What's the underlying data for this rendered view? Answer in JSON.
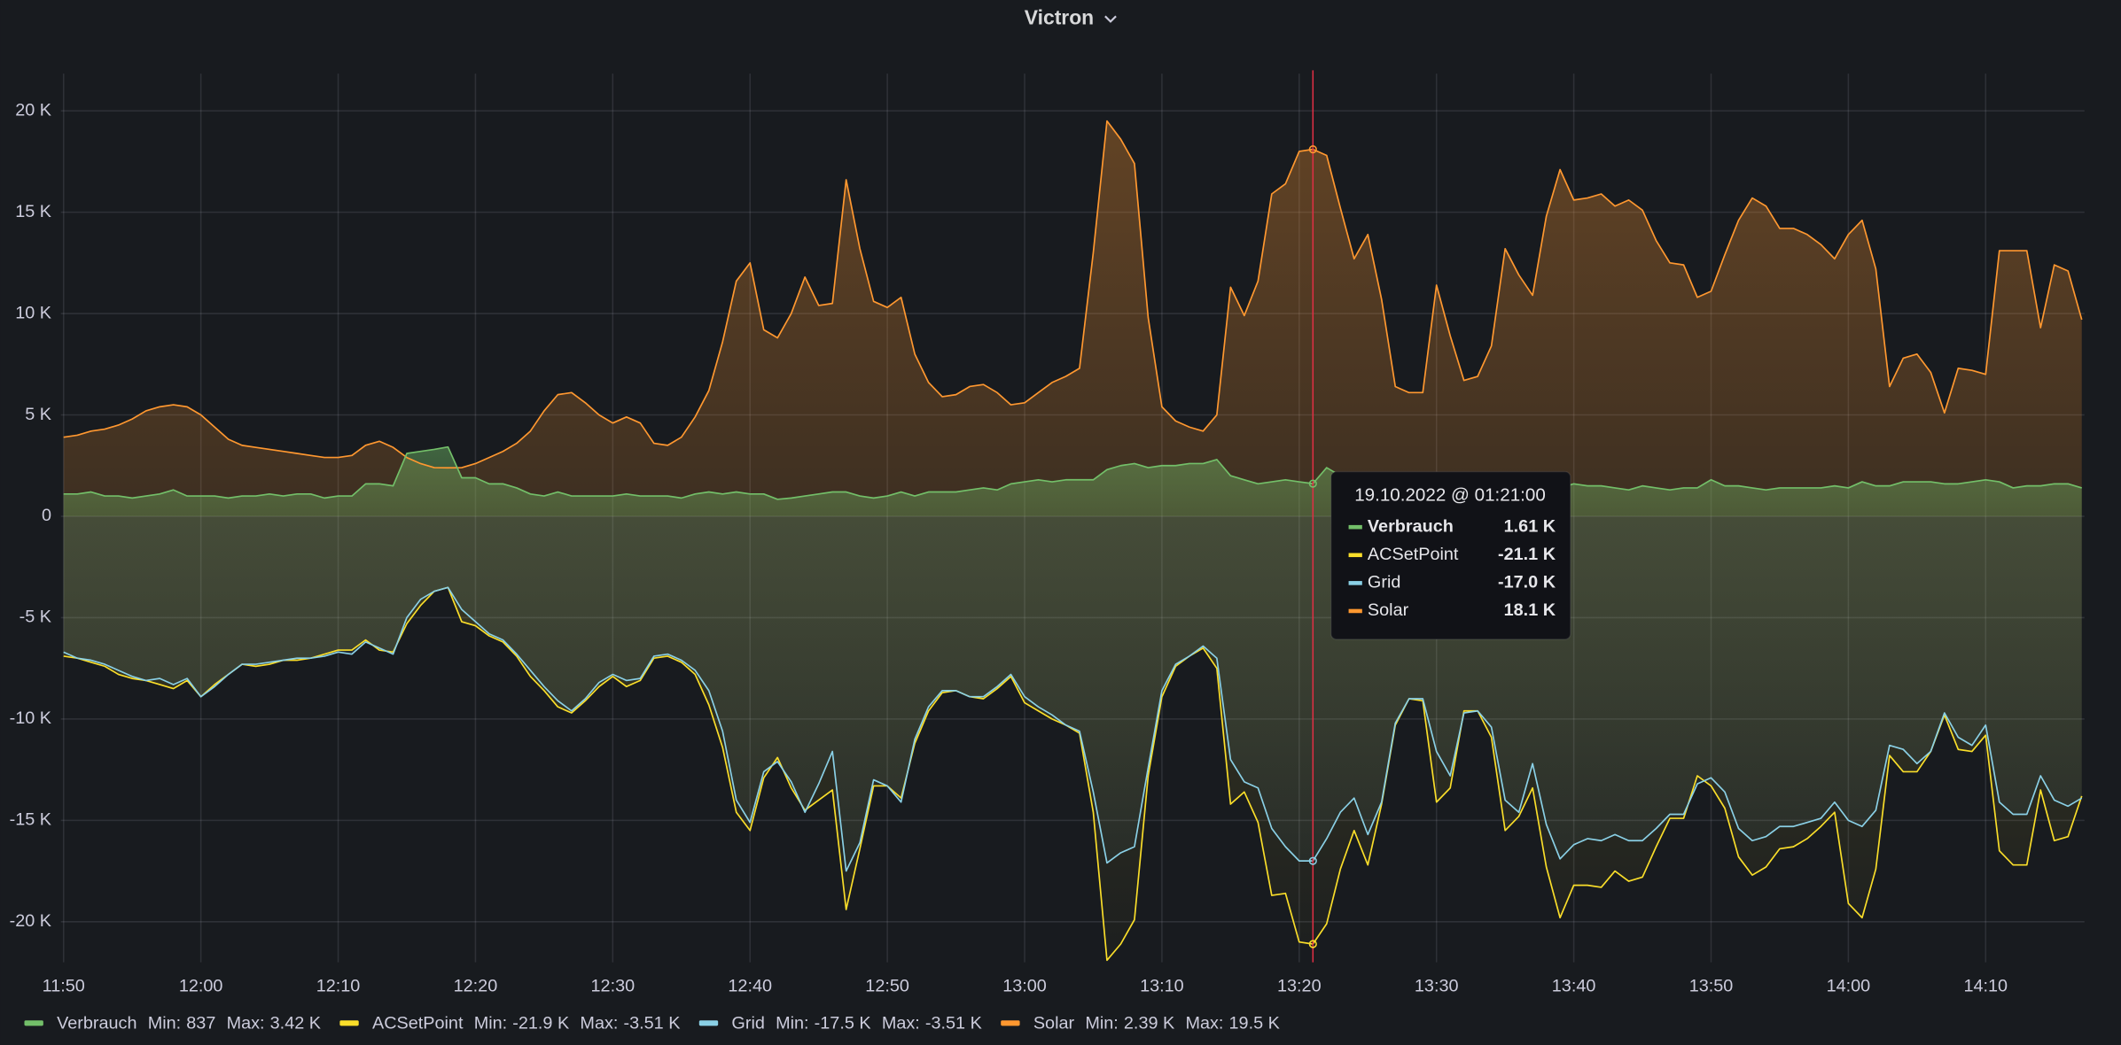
{
  "chart_data": {
    "type": "line",
    "title": "Victron",
    "x": [
      "11:50",
      "11:51",
      "11:52",
      "11:53",
      "11:54",
      "11:55",
      "11:56",
      "11:57",
      "11:58",
      "11:59",
      "12:00",
      "12:01",
      "12:02",
      "12:03",
      "12:04",
      "12:05",
      "12:06",
      "12:07",
      "12:08",
      "12:09",
      "12:10",
      "12:11",
      "12:12",
      "12:13",
      "12:14",
      "12:15",
      "12:16",
      "12:17",
      "12:18",
      "12:19",
      "12:20",
      "12:21",
      "12:22",
      "12:23",
      "12:24",
      "12:25",
      "12:26",
      "12:27",
      "12:28",
      "12:29",
      "12:30",
      "12:31",
      "12:32",
      "12:33",
      "12:34",
      "12:35",
      "12:36",
      "12:37",
      "12:38",
      "12:39",
      "12:40",
      "12:41",
      "12:42",
      "12:43",
      "12:44",
      "12:45",
      "12:46",
      "12:47",
      "12:48",
      "12:49",
      "12:50",
      "12:51",
      "12:52",
      "12:53",
      "12:54",
      "12:55",
      "12:56",
      "12:57",
      "12:58",
      "12:59",
      "13:00",
      "13:01",
      "13:02",
      "13:03",
      "13:04",
      "13:05",
      "13:06",
      "13:07",
      "13:08",
      "13:09",
      "13:10",
      "13:11",
      "13:12",
      "13:13",
      "13:14",
      "13:15",
      "13:16",
      "13:17",
      "13:18",
      "13:19",
      "13:20",
      "13:21",
      "13:22",
      "13:23",
      "13:24",
      "13:25",
      "13:26",
      "13:27",
      "13:28",
      "13:29",
      "13:30",
      "13:31",
      "13:32",
      "13:33",
      "13:34",
      "13:35",
      "13:36",
      "13:37",
      "13:38",
      "13:39",
      "13:40",
      "13:41",
      "13:42",
      "13:43",
      "13:44",
      "13:45",
      "13:46",
      "13:47",
      "13:48",
      "13:49",
      "13:50",
      "13:51",
      "13:52",
      "13:53",
      "13:54",
      "13:55",
      "13:56",
      "13:57",
      "13:58",
      "13:59",
      "14:00",
      "14:01",
      "14:02",
      "14:03",
      "14:04",
      "14:05",
      "14:06",
      "14:07",
      "14:08",
      "14:09",
      "14:10",
      "14:11",
      "14:12",
      "14:13",
      "14:14",
      "14:15",
      "14:16",
      "14:17"
    ],
    "xlim": [
      "11:50",
      "14:17"
    ],
    "xticks": [
      "11:50",
      "12:00",
      "12:10",
      "12:20",
      "12:30",
      "12:40",
      "12:50",
      "13:00",
      "13:10",
      "13:20",
      "13:30",
      "13:40",
      "13:50",
      "14:00",
      "14:10"
    ],
    "ylim": [
      -22000,
      21500
    ],
    "yticks": [
      {
        "value": -20000,
        "label": "-20 K"
      },
      {
        "value": -15000,
        "label": "-15 K"
      },
      {
        "value": -10000,
        "label": "-10 K"
      },
      {
        "value": -5000,
        "label": "-5 K"
      },
      0,
      {
        "value": 5000,
        "label": "5 K"
      },
      {
        "value": 10000,
        "label": "10 K"
      },
      {
        "value": 15000,
        "label": "15 K"
      },
      {
        "value": 20000,
        "label": "20 K"
      }
    ],
    "grid": true,
    "legend": "bottom-left",
    "legend_min": "Min:",
    "legend_max": "Max:",
    "series": [
      {
        "name": "Verbrauch",
        "color": "#73bf69",
        "min": 837,
        "max": 3420,
        "min_label": "837",
        "max_label": "3.42 K",
        "values": [
          1100,
          1100,
          1200,
          1000,
          1000,
          900,
          1000,
          1100,
          1300,
          1000,
          1000,
          1000,
          900,
          1000,
          1000,
          1100,
          1000,
          1100,
          1100,
          900,
          1000,
          1000,
          1600,
          1600,
          1500,
          3100,
          3200,
          3300,
          3420,
          1900,
          1900,
          1600,
          1600,
          1400,
          1100,
          1000,
          1200,
          1000,
          1000,
          1000,
          1000,
          1100,
          1000,
          1000,
          1000,
          900,
          1100,
          1200,
          1100,
          1200,
          1100,
          1100,
          837,
          900,
          1000,
          1100,
          1200,
          1200,
          1000,
          900,
          1000,
          1200,
          1000,
          1200,
          1200,
          1200,
          1300,
          1400,
          1300,
          1600,
          1700,
          1800,
          1700,
          1800,
          1800,
          1800,
          2300,
          2500,
          2600,
          2400,
          2500,
          2500,
          2600,
          2600,
          2800,
          2000,
          1800,
          1600,
          1700,
          1800,
          1700,
          1610,
          2400,
          2000,
          1700,
          1600,
          1500,
          1500,
          1500,
          1400,
          1500,
          1400,
          1400,
          1400,
          1500,
          1400,
          1400,
          1400,
          1300,
          1400,
          1600,
          1500,
          1500,
          1400,
          1300,
          1500,
          1400,
          1300,
          1400,
          1400,
          1800,
          1500,
          1500,
          1400,
          1300,
          1400,
          1400,
          1400,
          1400,
          1500,
          1400,
          1700,
          1500,
          1500,
          1700,
          1700,
          1700,
          1600,
          1600,
          1700,
          1800,
          1700,
          1400,
          1500,
          1500,
          1600,
          1600,
          1400
        ]
      },
      {
        "name": "ACSetPoint",
        "color": "#fade2a",
        "min": -21900,
        "max": -3510,
        "min_label": "-21.9 K",
        "max_label": "-3.51 K",
        "values": [
          -6900,
          -7000,
          -7200,
          -7400,
          -7800,
          -8000,
          -8100,
          -8300,
          -8500,
          -8100,
          -8900,
          -8300,
          -7800,
          -7300,
          -7400,
          -7300,
          -7100,
          -7100,
          -7000,
          -6800,
          -6600,
          -6600,
          -6100,
          -6600,
          -6700,
          -5300,
          -4400,
          -3700,
          -3510,
          -5200,
          -5400,
          -5900,
          -6200,
          -6900,
          -7900,
          -8600,
          -9400,
          -9700,
          -9100,
          -8400,
          -7900,
          -8400,
          -8100,
          -7000,
          -6900,
          -7200,
          -7800,
          -9300,
          -11400,
          -14600,
          -15500,
          -12900,
          -11900,
          -13400,
          -14500,
          -14000,
          -13500,
          -19400,
          -16400,
          -13300,
          -13300,
          -13900,
          -11200,
          -9600,
          -8700,
          -8600,
          -8900,
          -9000,
          -8500,
          -7900,
          -9200,
          -9600,
          -10000,
          -10300,
          -10700,
          -14600,
          -21900,
          -21100,
          -19900,
          -12800,
          -8900,
          -7400,
          -6900,
          -6500,
          -7500,
          -14200,
          -13600,
          -15100,
          -18700,
          -18600,
          -21000,
          -21100,
          -20100,
          -17400,
          -15500,
          -17200,
          -14200,
          -10300,
          -9000,
          -9100,
          -14100,
          -13400,
          -9600,
          -9600,
          -10900,
          -15500,
          -14800,
          -13400,
          -17300,
          -19800,
          -18200,
          -18200,
          -18300,
          -17500,
          -18000,
          -17800,
          -16300,
          -14900,
          -14900,
          -12800,
          -13300,
          -14400,
          -16800,
          -17700,
          -17300,
          -16400,
          -16300,
          -15900,
          -15300,
          -14600,
          -19100,
          -19800,
          -17400,
          -11800,
          -12600,
          -12600,
          -11600,
          -9800,
          -11500,
          -11600,
          -10800,
          -16500,
          -17200,
          -17200,
          -13500,
          -16000,
          -15800,
          -13800
        ]
      },
      {
        "name": "Grid",
        "color": "#8ad0e6",
        "min": -17500,
        "max": -3510,
        "min_label": "-17.5 K",
        "max_label": "-3.51 K",
        "values": [
          -6700,
          -7000,
          -7100,
          -7300,
          -7600,
          -7900,
          -8100,
          -8000,
          -8300,
          -8000,
          -8900,
          -8400,
          -7800,
          -7300,
          -7300,
          -7200,
          -7100,
          -7000,
          -7000,
          -6900,
          -6700,
          -6800,
          -6200,
          -6500,
          -6800,
          -5000,
          -4100,
          -3700,
          -3510,
          -4600,
          -5200,
          -5800,
          -6100,
          -6800,
          -7600,
          -8400,
          -9100,
          -9600,
          -9000,
          -8200,
          -7800,
          -8100,
          -8000,
          -6900,
          -6800,
          -7100,
          -7600,
          -8600,
          -10600,
          -14000,
          -15100,
          -12600,
          -12100,
          -13100,
          -14600,
          -13200,
          -11600,
          -17500,
          -16100,
          -13000,
          -13300,
          -14100,
          -11000,
          -9400,
          -8600,
          -8600,
          -8900,
          -8900,
          -8400,
          -7800,
          -8900,
          -9400,
          -9800,
          -10300,
          -10600,
          -13600,
          -17100,
          -16600,
          -16300,
          -12400,
          -8600,
          -7300,
          -6900,
          -6400,
          -7000,
          -12000,
          -13100,
          -13400,
          -15400,
          -16300,
          -17000,
          -17000,
          -15900,
          -14600,
          -13900,
          -15700,
          -14100,
          -10200,
          -9000,
          -9000,
          -11600,
          -12800,
          -9700,
          -9600,
          -10400,
          -14000,
          -14600,
          -12200,
          -15200,
          -16900,
          -16200,
          -15900,
          -16000,
          -15700,
          -16000,
          -16000,
          -15400,
          -14700,
          -14700,
          -13200,
          -12900,
          -13600,
          -15400,
          -16000,
          -15800,
          -15300,
          -15300,
          -15100,
          -14900,
          -14100,
          -15000,
          -15300,
          -14500,
          -11300,
          -11500,
          -12200,
          -11600,
          -9700,
          -10900,
          -11300,
          -10300,
          -14100,
          -14700,
          -14700,
          -12800,
          -14000,
          -14300,
          -13900
        ]
      },
      {
        "name": "Solar",
        "color": "#ff9830",
        "min": 2390,
        "max": 19500,
        "min_label": "2.39 K",
        "max_label": "19.5 K",
        "values": [
          3900,
          4000,
          4200,
          4300,
          4500,
          4800,
          5200,
          5400,
          5500,
          5400,
          5000,
          4400,
          3800,
          3500,
          3400,
          3300,
          3200,
          3100,
          3000,
          2900,
          2900,
          3000,
          3500,
          3700,
          3400,
          2900,
          2600,
          2400,
          2390,
          2400,
          2600,
          2900,
          3200,
          3600,
          4200,
          5200,
          6000,
          6100,
          5600,
          5000,
          4600,
          4900,
          4600,
          3600,
          3500,
          3900,
          4900,
          6200,
          8600,
          11600,
          12500,
          9200,
          8800,
          10000,
          11800,
          10400,
          10500,
          16600,
          13200,
          10600,
          10300,
          10800,
          8000,
          6600,
          5900,
          6000,
          6400,
          6500,
          6100,
          5500,
          5600,
          6100,
          6600,
          6900,
          7300,
          13000,
          19500,
          18600,
          17400,
          9800,
          5400,
          4700,
          4400,
          4200,
          5000,
          11300,
          9900,
          11600,
          15900,
          16400,
          18000,
          18100,
          17800,
          15200,
          12700,
          13900,
          10700,
          6400,
          6100,
          6100,
          11400,
          8900,
          6700,
          6900,
          8400,
          13200,
          11900,
          10900,
          14800,
          17100,
          15600,
          15700,
          15900,
          15300,
          15600,
          15100,
          13600,
          12500,
          12400,
          10800,
          11100,
          12900,
          14600,
          15700,
          15300,
          14200,
          14200,
          13900,
          13400,
          12700,
          13900,
          14600,
          12200,
          6400,
          7800,
          8000,
          7100,
          5100,
          7300,
          7200,
          7000,
          13100,
          13100,
          13100,
          9300,
          12400,
          12100,
          9700
        ]
      }
    ],
    "tooltip": {
      "title": "19.10.2022 @ 01:21:00",
      "values": [
        1610,
        -21100,
        -17000,
        18100
      ],
      "value_labels": [
        "1.61 K",
        "-21.1 K",
        "-17.0 K",
        "18.1 K"
      ]
    }
  }
}
